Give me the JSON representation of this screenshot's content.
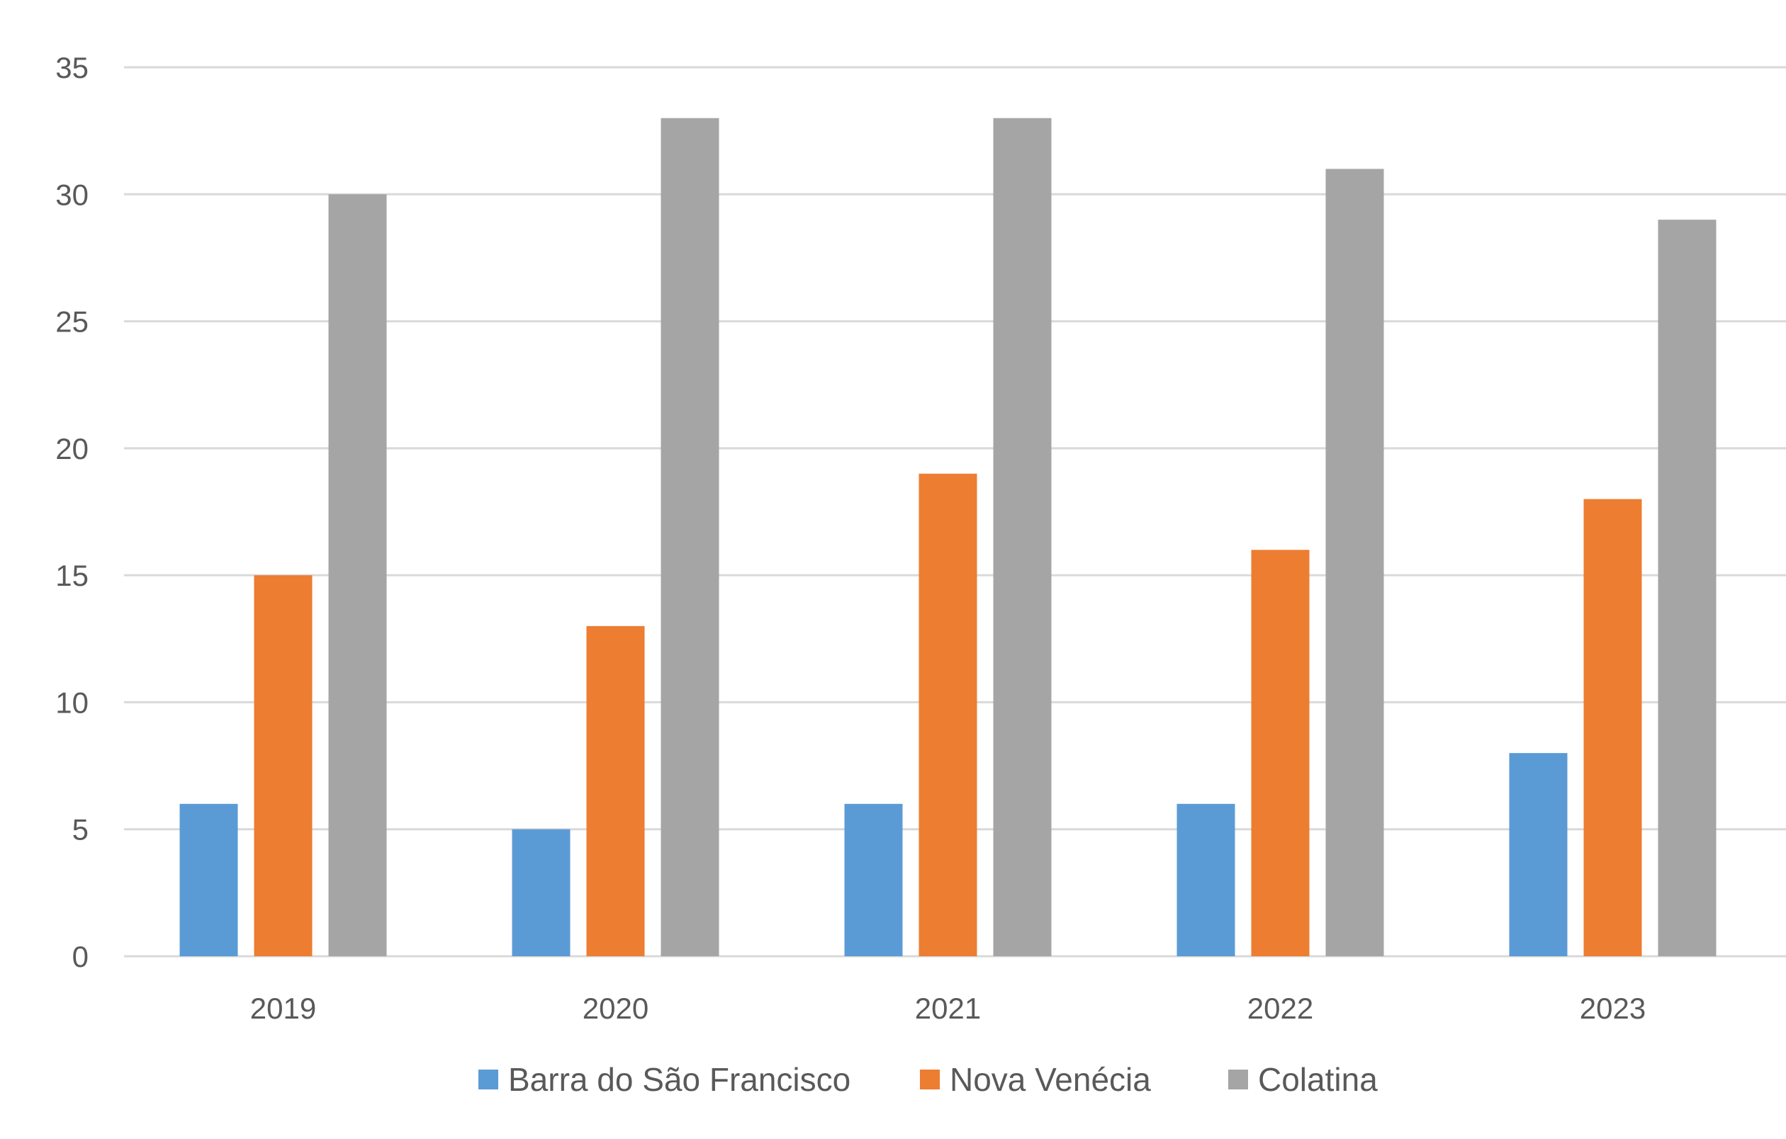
{
  "chart_data": {
    "type": "bar",
    "categories": [
      "2019",
      "2020",
      "2021",
      "2022",
      "2023"
    ],
    "series": [
      {
        "name": "Barra do São Francisco",
        "color": "#5b9bd5",
        "values": [
          6,
          5,
          6,
          6,
          8
        ]
      },
      {
        "name": "Nova Venécia",
        "color": "#ed7d31",
        "values": [
          15,
          13,
          19,
          16,
          18
        ]
      },
      {
        "name": "Colatina",
        "color": "#a5a5a5",
        "values": [
          30,
          33,
          33,
          31,
          29
        ]
      }
    ],
    "ylim": [
      0,
      35
    ],
    "yticks": [
      0,
      5,
      10,
      15,
      20,
      25,
      30,
      35
    ],
    "grid": true,
    "legend_position": "bottom"
  }
}
